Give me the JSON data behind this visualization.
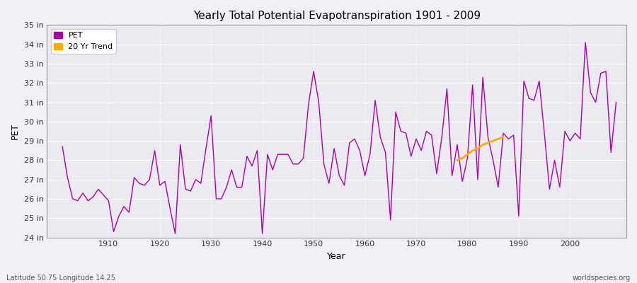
{
  "title": "Yearly Total Potential Evapotranspiration 1901 - 2009",
  "xlabel": "Year",
  "ylabel": "PET",
  "ylim": [
    24,
    35
  ],
  "yticks": [
    24,
    25,
    26,
    27,
    28,
    29,
    30,
    31,
    32,
    33,
    34,
    35
  ],
  "ytick_labels": [
    "24 in",
    "25 in",
    "26 in",
    "27 in",
    "28 in",
    "29 in",
    "30 in",
    "31 in",
    "32 in",
    "33 in",
    "34 in",
    "35 in"
  ],
  "xlim": [
    1898,
    2011
  ],
  "xticks": [
    1910,
    1920,
    1930,
    1940,
    1950,
    1960,
    1970,
    1980,
    1990,
    2000
  ],
  "pet_color": "#aa00aa",
  "trend_color": "#ffaa00",
  "fig_bg_color": "#f0f0f5",
  "plot_bg_color": "#eaeaf0",
  "grid_color": "#ffffff",
  "subtitle": "Latitude 50.75 Longitude 14.25",
  "watermark": "worldspecies.org",
  "years": [
    1901,
    1902,
    1903,
    1904,
    1905,
    1906,
    1907,
    1908,
    1909,
    1910,
    1911,
    1912,
    1913,
    1914,
    1915,
    1916,
    1917,
    1918,
    1919,
    1920,
    1921,
    1922,
    1923,
    1924,
    1925,
    1926,
    1927,
    1928,
    1929,
    1930,
    1931,
    1932,
    1933,
    1934,
    1935,
    1936,
    1937,
    1938,
    1939,
    1940,
    1941,
    1942,
    1943,
    1944,
    1945,
    1946,
    1947,
    1948,
    1949,
    1950,
    1951,
    1952,
    1953,
    1954,
    1955,
    1956,
    1957,
    1958,
    1959,
    1960,
    1961,
    1962,
    1963,
    1964,
    1965,
    1966,
    1967,
    1968,
    1969,
    1970,
    1971,
    1972,
    1973,
    1974,
    1975,
    1976,
    1977,
    1978,
    1979,
    1980,
    1981,
    1982,
    1983,
    1984,
    1985,
    1986,
    1987,
    1988,
    1989,
    1990,
    1991,
    1992,
    1993,
    1994,
    1995,
    1996,
    1997,
    1998,
    1999,
    2000,
    2001,
    2002,
    2003,
    2004,
    2005,
    2006,
    2007,
    2008,
    2009
  ],
  "pet_values": [
    28.7,
    27.1,
    26.0,
    25.9,
    26.3,
    25.9,
    26.1,
    26.5,
    26.2,
    25.9,
    24.3,
    25.1,
    25.6,
    25.3,
    27.1,
    26.8,
    26.7,
    27.0,
    28.5,
    26.7,
    26.9,
    25.5,
    24.2,
    28.8,
    26.5,
    26.4,
    27.0,
    26.8,
    28.6,
    30.3,
    26.0,
    26.0,
    26.6,
    27.5,
    26.6,
    26.6,
    28.2,
    27.7,
    28.5,
    24.2,
    28.3,
    27.5,
    28.3,
    28.3,
    28.3,
    27.8,
    27.8,
    28.1,
    30.9,
    32.6,
    31.0,
    27.8,
    26.8,
    28.6,
    27.2,
    26.7,
    28.9,
    29.1,
    28.5,
    27.2,
    28.3,
    31.1,
    29.2,
    28.4,
    24.9,
    30.5,
    29.5,
    29.4,
    28.2,
    29.1,
    28.5,
    29.5,
    29.3,
    27.3,
    29.2,
    31.7,
    27.2,
    28.8,
    26.9,
    28.1,
    31.9,
    27.0,
    32.3,
    29.2,
    28.0,
    26.6,
    29.4,
    29.1,
    29.3,
    25.1,
    32.1,
    31.2,
    31.1,
    32.1,
    29.4,
    26.5,
    28.0,
    26.6,
    29.5,
    29.0,
    29.4,
    29.1,
    34.1,
    31.5,
    31.0,
    32.5,
    32.6,
    28.4,
    31.0
  ],
  "trend_years": [
    1978,
    1979,
    1980,
    1981,
    1982,
    1983,
    1984,
    1985,
    1986,
    1987
  ],
  "trend_values": [
    28.0,
    28.1,
    28.3,
    28.5,
    28.6,
    28.8,
    28.9,
    29.0,
    29.1,
    29.2
  ]
}
